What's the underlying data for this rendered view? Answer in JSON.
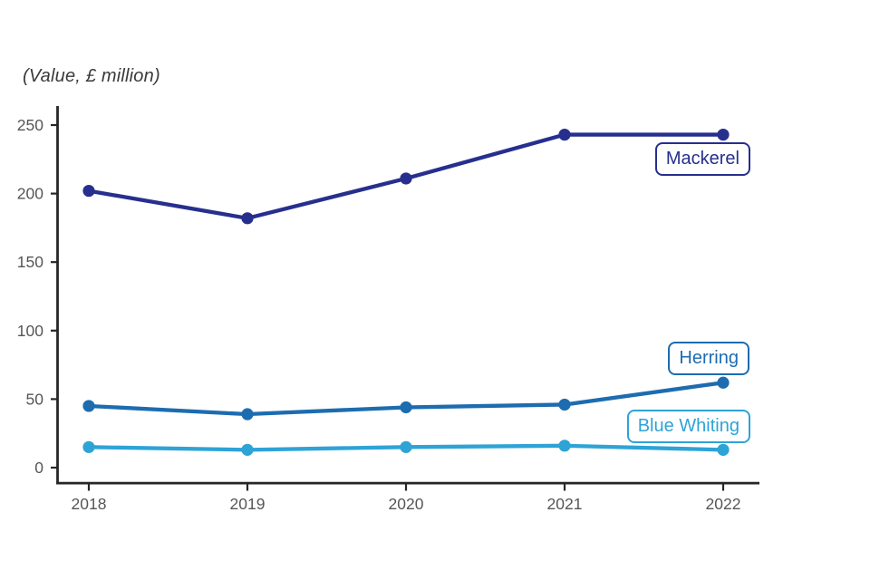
{
  "title": "(Value, £ million)",
  "axis": {
    "tick_label_color": "#565656",
    "axis_line_color": "#262626"
  },
  "chart_data": {
    "type": "line",
    "title": "(Value, £ million)",
    "x": [
      2018,
      2019,
      2020,
      2021,
      2022
    ],
    "xticklabels": [
      "2018",
      "2019",
      "2020",
      "2021",
      "2022"
    ],
    "yticks": [
      0,
      50,
      100,
      150,
      200,
      250
    ],
    "ylim": [
      0,
      250
    ],
    "ylabel": "Value, £ million",
    "xlabel": "",
    "grid": false,
    "legend_position": "inline-labels-right",
    "series": [
      {
        "name": "Mackerel",
        "color": "#272F8E",
        "values": [
          202,
          182,
          211,
          243,
          243
        ]
      },
      {
        "name": "Herring",
        "color": "#1D6CB0",
        "values": [
          45,
          39,
          44,
          46,
          62
        ]
      },
      {
        "name": "Blue Whiting",
        "color": "#2EA3D6",
        "values": [
          15,
          13,
          15,
          16,
          13
        ]
      }
    ]
  }
}
